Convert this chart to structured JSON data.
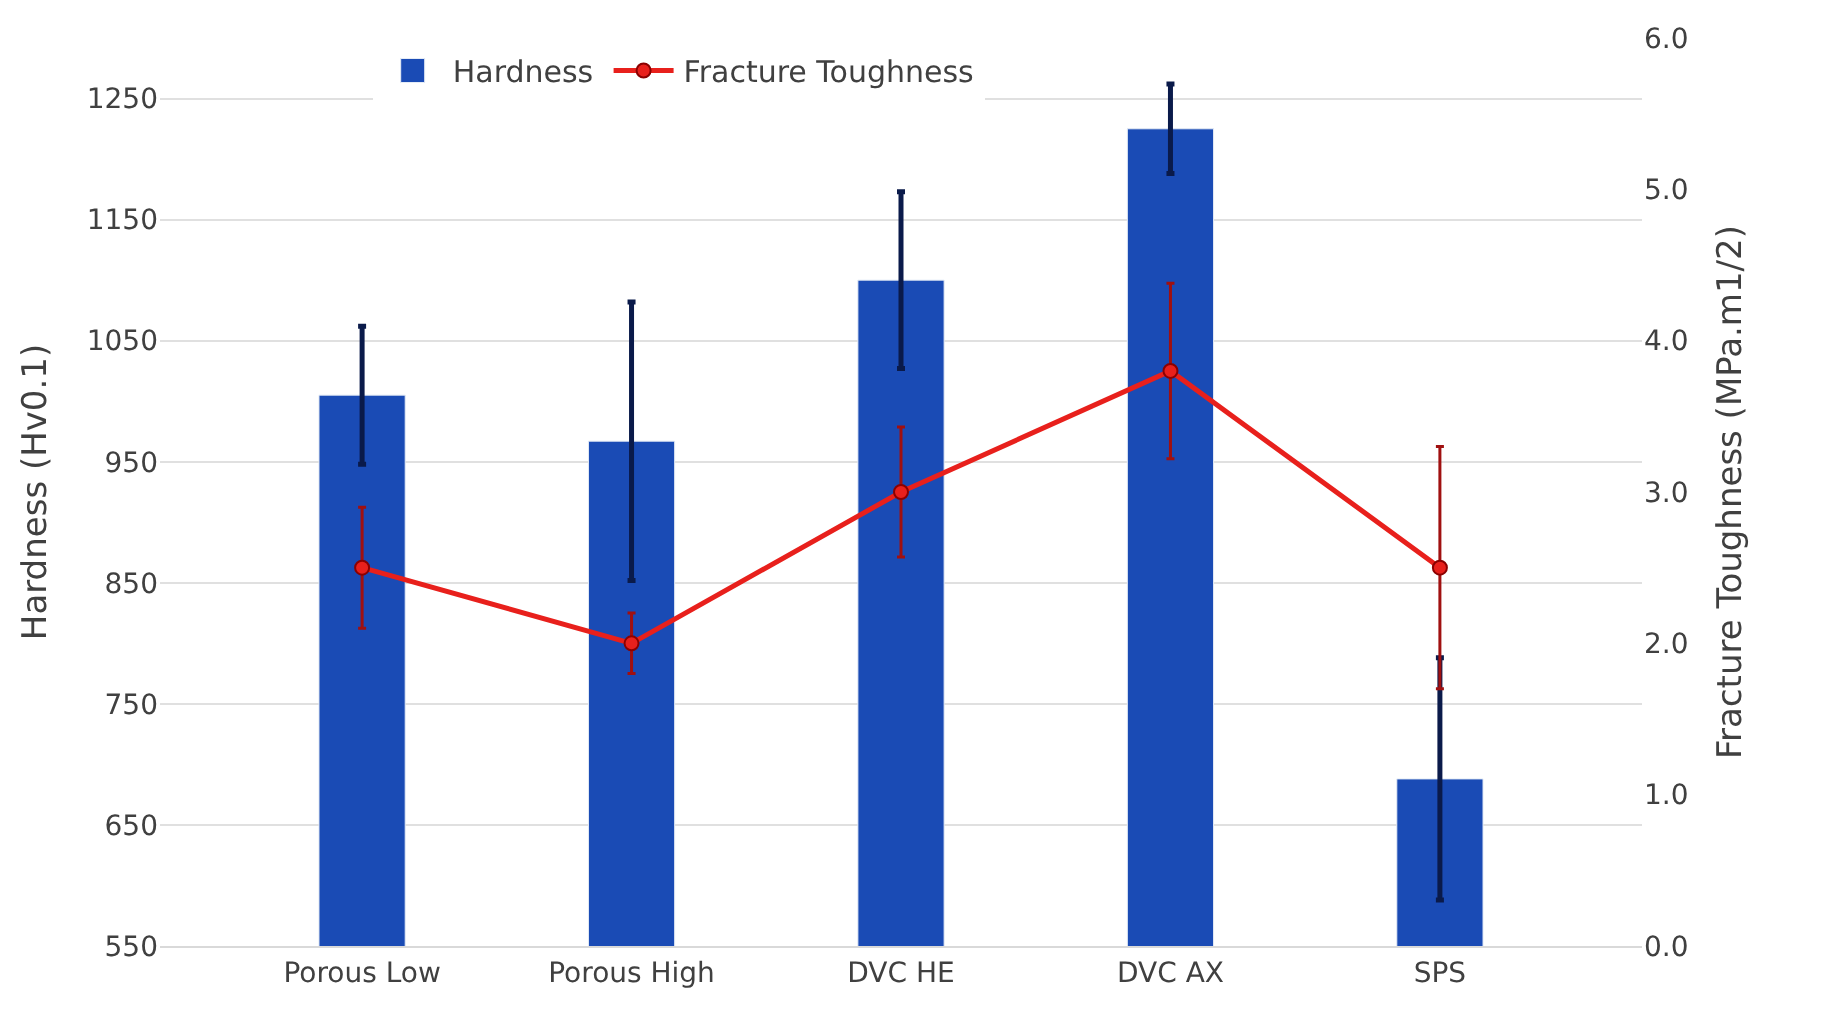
{
  "chart_data": {
    "type": "bar",
    "categories": [
      "Porous Low",
      "Porous High",
      "DVC HE",
      "DVC AX",
      "SPS"
    ],
    "ylabel": "Hardness (Hv0.1)",
    "y2label": "Fracture Toughness (MPa.m1/2)",
    "ylim": [
      550,
      1300
    ],
    "yticks": [
      550,
      650,
      750,
      850,
      950,
      1050,
      1150,
      1250
    ],
    "y2lim": [
      0,
      6
    ],
    "y2ticks": [
      {
        "value": 0,
        "label": "0.0"
      },
      {
        "value": 1,
        "label": "1.0"
      },
      {
        "value": 2,
        "label": "2.0"
      },
      {
        "value": 3,
        "label": "3.0"
      },
      {
        "value": 4,
        "label": "4.0"
      },
      {
        "value": 5,
        "label": "5.0"
      },
      {
        "value": 6,
        "label": "6.0"
      }
    ],
    "grid": "y",
    "legend": "top",
    "marker": "circle",
    "series": [
      {
        "name": "Hardness",
        "color": "#1a4bb5",
        "values": [
          1005,
          967,
          1100,
          1225,
          688
        ],
        "errors": [
          57,
          115,
          73,
          37,
          100
        ]
      },
      {
        "name": "Fracture Toughness",
        "type": "line",
        "axis": "y2",
        "color": "#e8201c",
        "values": [
          2.5,
          2.0,
          3.0,
          3.8,
          2.5
        ],
        "errors": [
          0.4,
          0.2,
          0.43,
          0.58,
          0.8
        ]
      }
    ]
  }
}
